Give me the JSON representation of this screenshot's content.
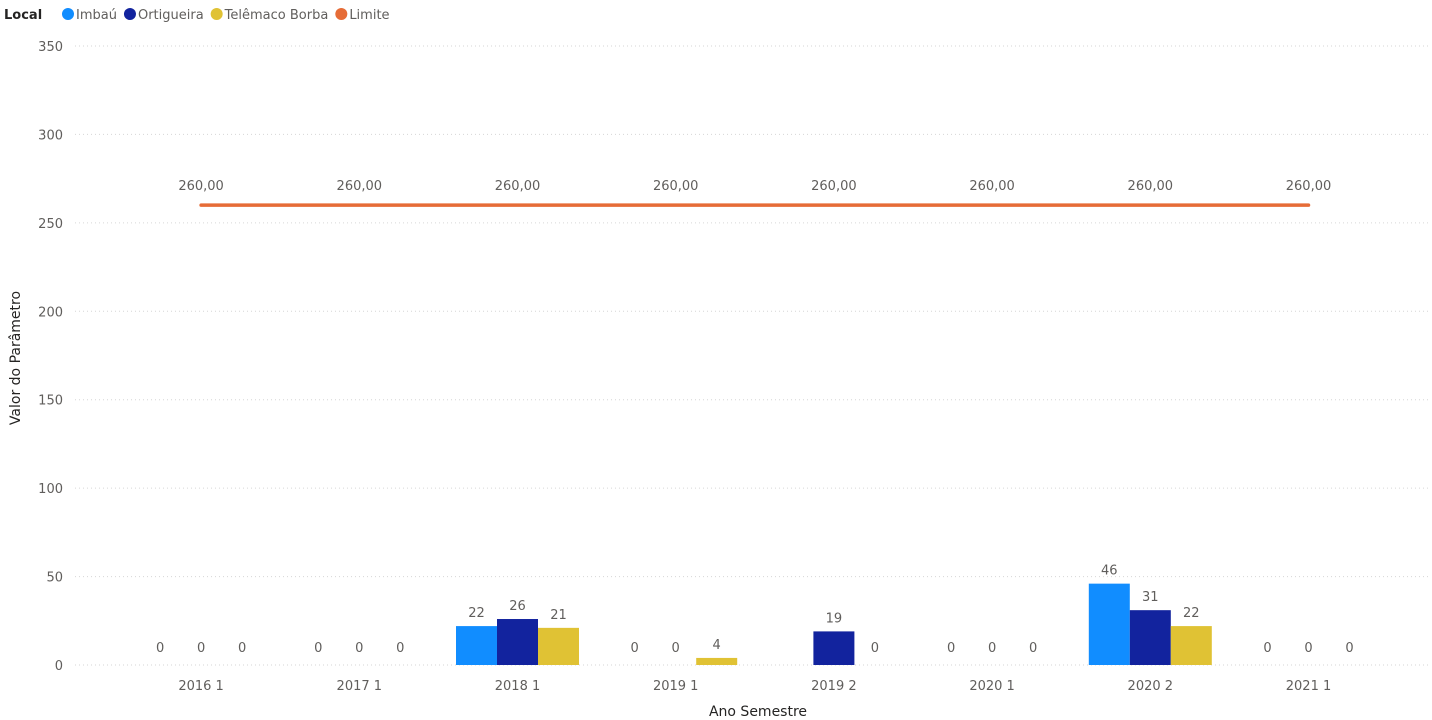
{
  "legend": {
    "title": "Local",
    "items": [
      {
        "label": "Imbaú",
        "color": "#118DFF"
      },
      {
        "label": "Ortigueira",
        "color": "#12239E"
      },
      {
        "label": "Telêmaco Borba",
        "color": "#E0C234"
      },
      {
        "label": "Limite",
        "color": "#E66C37"
      }
    ]
  },
  "chart_data": {
    "type": "bar",
    "xlabel": "Ano Semestre",
    "ylabel": "Valor do Parâmetro",
    "ylim": [
      0,
      350
    ],
    "yticks": [
      0,
      50,
      100,
      150,
      200,
      250,
      300,
      350
    ],
    "grid": true,
    "legend_position": "top-left",
    "categories": [
      "2016 1",
      "2017 1",
      "2018 1",
      "2019 1",
      "2019 2",
      "2020 1",
      "2020 2",
      "2021 1"
    ],
    "series": [
      {
        "name": "Imbaú",
        "color": "#118DFF",
        "values": [
          0,
          0,
          22,
          0,
          null,
          0,
          46,
          0
        ],
        "labels": [
          "0",
          "0",
          "22",
          "0",
          null,
          "0",
          "46",
          "0"
        ]
      },
      {
        "name": "Ortigueira",
        "color": "#12239E",
        "values": [
          0,
          0,
          26,
          0,
          19,
          0,
          31,
          0
        ],
        "labels": [
          "0",
          "0",
          "26",
          "0",
          "19",
          "0",
          "31",
          "0"
        ]
      },
      {
        "name": "Telêmaco Borba",
        "color": "#E0C234",
        "values": [
          0,
          0,
          21,
          4,
          0,
          0,
          22,
          0
        ],
        "labels": [
          "0",
          "0",
          "21",
          "4",
          "0",
          "0",
          "22",
          "0"
        ]
      }
    ],
    "line_series": {
      "name": "Limite",
      "color": "#E66C37",
      "values": [
        260,
        260,
        260,
        260,
        260,
        260,
        260,
        260
      ],
      "labels": [
        "260,00",
        "260,00",
        "260,00",
        "260,00",
        "260,00",
        "260,00",
        "260,00",
        "260,00"
      ]
    }
  }
}
